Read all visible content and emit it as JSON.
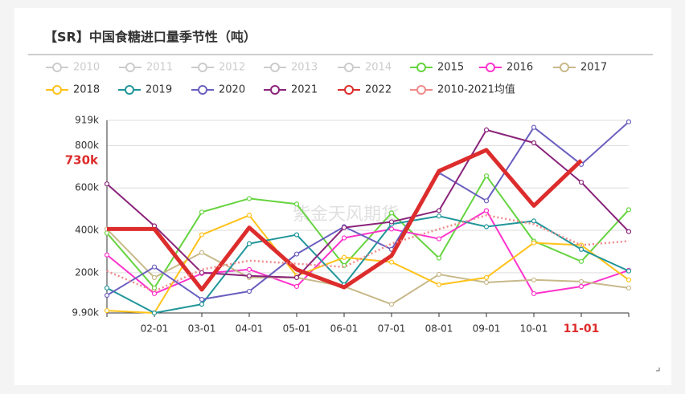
{
  "chart_data": {
    "type": "line",
    "title": "【SR】中国食糖进口量季节性（吨）",
    "watermark": "紫金天风期货",
    "categories": [
      null,
      "02-01",
      "03-01",
      "04-01",
      "05-01",
      "06-01",
      "07-01",
      "08-01",
      "09-01",
      "10-01",
      "11-01",
      null
    ],
    "highlighted_category": 10,
    "ylim": [
      9.9,
      919
    ],
    "yticks": [
      {
        "value": 9.9,
        "label": "9.90k"
      },
      {
        "value": 200,
        "label": "200k"
      },
      {
        "value": 400,
        "label": "400k"
      },
      {
        "value": 600,
        "label": "600k"
      },
      {
        "value": 800,
        "label": "800k"
      },
      {
        "value": 919,
        "label": "919k"
      }
    ],
    "y_pointer": {
      "value": 730,
      "label": "730k"
    },
    "grid": true,
    "series": [
      {
        "name": "2010",
        "color": "#cccccc",
        "hidden": true,
        "values": [
          null,
          null,
          null,
          null,
          null,
          null,
          null,
          null,
          null,
          null,
          null,
          null
        ]
      },
      {
        "name": "2011",
        "color": "#cccccc",
        "hidden": true,
        "values": [
          null,
          null,
          null,
          null,
          null,
          null,
          null,
          null,
          null,
          null,
          null,
          null
        ]
      },
      {
        "name": "2012",
        "color": "#cccccc",
        "hidden": true,
        "values": [
          null,
          null,
          null,
          null,
          null,
          null,
          null,
          null,
          null,
          null,
          null,
          null
        ]
      },
      {
        "name": "2013",
        "color": "#cccccc",
        "hidden": true,
        "values": [
          null,
          null,
          null,
          null,
          null,
          null,
          null,
          null,
          null,
          null,
          null,
          null
        ]
      },
      {
        "name": "2014",
        "color": "#cccccc",
        "hidden": true,
        "values": [
          null,
          null,
          null,
          null,
          null,
          null,
          null,
          null,
          null,
          null,
          null,
          null
        ]
      },
      {
        "name": "2015",
        "color": "#66d440",
        "values": [
          387,
          128,
          486,
          550,
          524,
          234,
          482,
          269,
          657,
          349,
          253,
          497
        ]
      },
      {
        "name": "2016",
        "color": "#ff33cc",
        "values": [
          284,
          101,
          196,
          215,
          135,
          364,
          406,
          360,
          493,
          101,
          135,
          211
        ]
      },
      {
        "name": "2017",
        "color": "#c8b98a",
        "values": [
          406,
          177,
          295,
          177,
          177,
          135,
          51,
          192,
          154,
          166,
          158,
          128
        ]
      },
      {
        "name": "2018",
        "color": "#ffc21a",
        "values": [
          21,
          10,
          379,
          471,
          185,
          272,
          250,
          143,
          177,
          341,
          330,
          166
        ]
      },
      {
        "name": "2019",
        "color": "#21969a",
        "values": [
          128,
          10,
          51,
          337,
          379,
          143,
          429,
          467,
          417,
          444,
          310,
          208
        ]
      },
      {
        "name": "2020",
        "color": "#6a5fbf",
        "values": [
          93,
          227,
          74,
          112,
          288,
          417,
          310,
          672,
          539,
          886,
          711,
          912
        ]
      },
      {
        "name": "2021",
        "color": "#8a237a",
        "values": [
          619,
          421,
          200,
          185,
          177,
          413,
          440,
          493,
          874,
          813,
          627,
          394
        ]
      },
      {
        "name": "2022",
        "color": "#dd2c2c",
        "width": 5,
        "values": [
          406,
          406,
          120,
          413,
          215,
          131,
          280,
          680,
          779,
          516,
          730,
          null
        ]
      },
      {
        "name": "2010-2021均值",
        "color": "#f08a8a",
        "dashed": true,
        "values": [
          208,
          112,
          215,
          257,
          242,
          227,
          337,
          406,
          471,
          429,
          330,
          349
        ]
      }
    ]
  }
}
